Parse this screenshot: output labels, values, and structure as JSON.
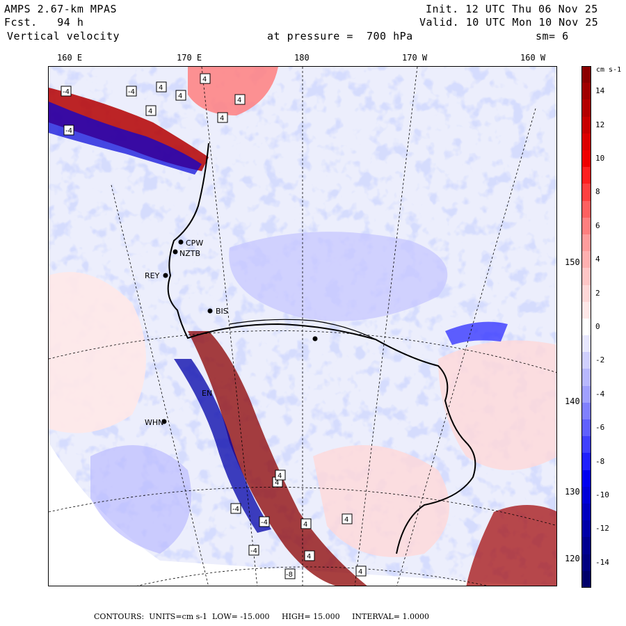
{
  "header": {
    "model": "AMPS 2.67-km MPAS",
    "fcst_label": "Fcst.",
    "fcst_value": "94 h",
    "field": "Vertical velocity",
    "init_label": "Init.",
    "init_value": "12 UTC Thu 06 Nov 25",
    "valid_label": "Valid.",
    "valid_value": "10 UTC Mon 10 Nov 25",
    "pressure_label": "at pressure =",
    "pressure_value": "700 hPa",
    "smoothing": "sm= 6"
  },
  "longitude_labels": [
    "160 E",
    "170 E",
    "180",
    "170 W",
    "160 W"
  ],
  "latitude_labels": [
    "150 W",
    "140 W",
    "130 W",
    "120 W"
  ],
  "stations": [
    "CPW",
    "NZTB",
    "REY",
    "BIS",
    "EN",
    "WHN"
  ],
  "contour_marks": [
    "-4",
    "-4",
    "4",
    "4",
    "4",
    "4",
    "4",
    "4",
    "4",
    "4",
    "-4",
    "4",
    "-4",
    "4",
    "-4",
    "-4",
    "4",
    "4",
    "-8"
  ],
  "colorbar": {
    "units": "cm s-1",
    "ticks": [
      "14",
      "12",
      "10",
      "8",
      "6",
      "4",
      "2",
      "0",
      "-2",
      "-4",
      "-6",
      "-8",
      "-10",
      "-12",
      "-14"
    ],
    "levels": [
      {
        "value": 15,
        "color": "#8b0000"
      },
      {
        "value": 14,
        "color": "#a00000"
      },
      {
        "value": 13,
        "color": "#b40000"
      },
      {
        "value": 12,
        "color": "#c80000"
      },
      {
        "value": 11,
        "color": "#dc0000"
      },
      {
        "value": 10,
        "color": "#f00000"
      },
      {
        "value": 9,
        "color": "#ff2020"
      },
      {
        "value": 8,
        "color": "#ff4040"
      },
      {
        "value": 7,
        "color": "#ff6060"
      },
      {
        "value": 6,
        "color": "#ff7f7f"
      },
      {
        "value": 5,
        "color": "#ff9c9c"
      },
      {
        "value": 4,
        "color": "#ffb0b0"
      },
      {
        "value": 3,
        "color": "#ffc6c6"
      },
      {
        "value": 2,
        "color": "#ffd8d8"
      },
      {
        "value": 1,
        "color": "#ffe8e8"
      },
      {
        "value": 0,
        "color": "#ffffff"
      },
      {
        "value": -1,
        "color": "#e8e8ff"
      },
      {
        "value": -2,
        "color": "#d0d0ff"
      },
      {
        "value": -3,
        "color": "#b8b8ff"
      },
      {
        "value": -4,
        "color": "#a0a0ff"
      },
      {
        "value": -5,
        "color": "#8080ff"
      },
      {
        "value": -6,
        "color": "#6060ff"
      },
      {
        "value": -7,
        "color": "#4040ff"
      },
      {
        "value": -8,
        "color": "#2020ff"
      },
      {
        "value": -9,
        "color": "#0000f0"
      },
      {
        "value": -10,
        "color": "#0000d8"
      },
      {
        "value": -11,
        "color": "#0000c0"
      },
      {
        "value": -12,
        "color": "#0000a8"
      },
      {
        "value": -13,
        "color": "#000090"
      },
      {
        "value": -14,
        "color": "#000080"
      },
      {
        "value": -15,
        "color": "#00006a"
      }
    ]
  },
  "footer": {
    "contours": "CONTOURS:",
    "units": "UNITS=cm s-1",
    "low": "LOW= -15.000",
    "high": "HIGH= 15.000",
    "interval": "INTERVAL= 1.0000"
  }
}
